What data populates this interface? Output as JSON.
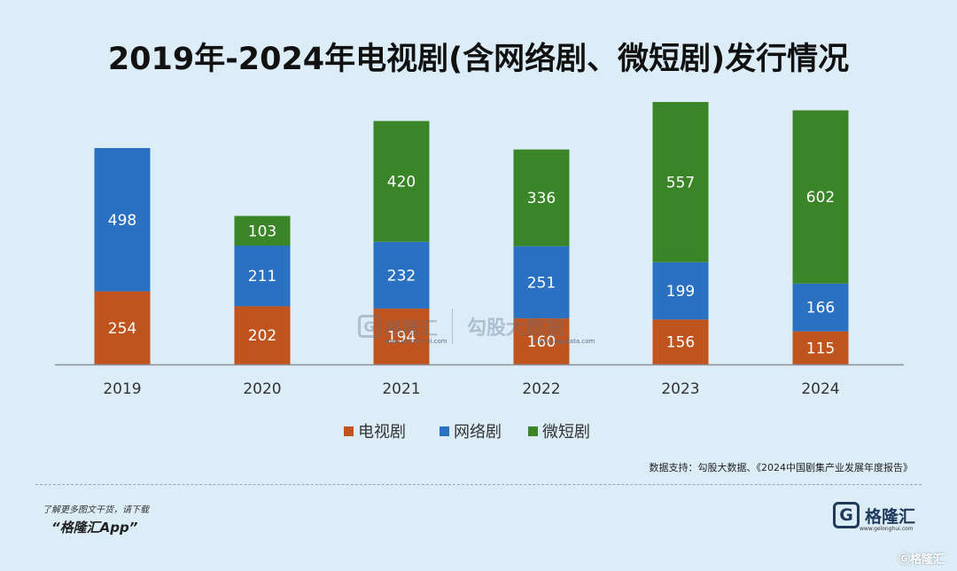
{
  "title": "2019年-2024年电视剧(含网络剧、微短剧)发行情况",
  "source": "数据支持：勾股大数据、《2024中国剧集产业发展年度报告》",
  "promo": {
    "line1": "了解更多图文干货，请下载",
    "line2": "“格隆汇App”"
  },
  "logo": {
    "glyph": "G",
    "name": "格隆汇",
    "url": "www.gelonghui.com"
  },
  "watermark": {
    "corner": "Ⓖ格隆汇",
    "brand1": "格隆汇",
    "brand1_url": "www.gelonghui.com",
    "brand2": "勾股大数据",
    "brand2_url": "www.gogudata.com"
  },
  "chart_data": {
    "type": "bar",
    "stacked": true,
    "categories": [
      "2019",
      "2020",
      "2021",
      "2022",
      "2023",
      "2024"
    ],
    "series": [
      {
        "name": "电视剧",
        "color": "#c0541f",
        "values": [
          254,
          202,
          194,
          160,
          156,
          115
        ]
      },
      {
        "name": "网络剧",
        "color": "#2a72c1",
        "values": [
          498,
          211,
          232,
          251,
          199,
          166
        ]
      },
      {
        "name": "微短剧",
        "color": "#3a8527",
        "values": [
          null,
          103,
          420,
          336,
          557,
          602
        ]
      }
    ],
    "legend_position": "bottom",
    "grid": false
  }
}
